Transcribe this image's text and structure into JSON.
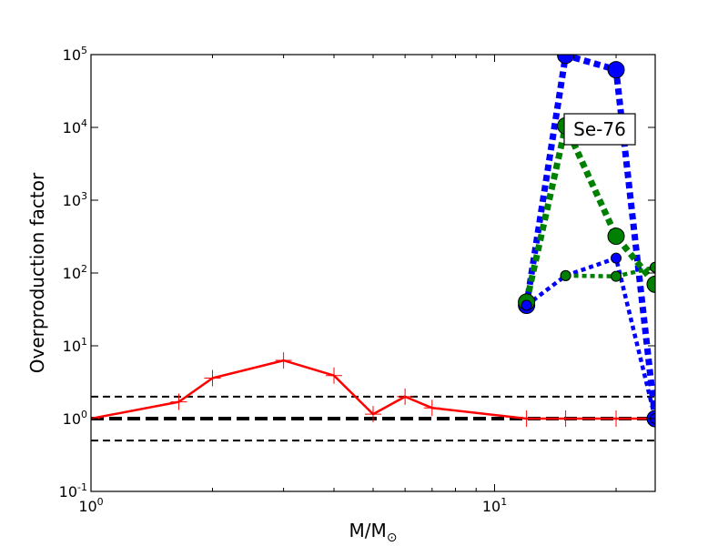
{
  "chart_data": {
    "type": "line",
    "xlabel_main": "M/M",
    "xlabel_sub": "⊙",
    "ylabel": "Overproduction factor",
    "annotation": "Se-76",
    "x_scale": "log",
    "y_scale": "log",
    "xlim": [
      1,
      25
    ],
    "ylim": [
      0.1,
      100000
    ],
    "x_ticks": [
      {
        "value": 1,
        "base": "10",
        "exp": "0"
      },
      {
        "value": 10,
        "base": "10",
        "exp": "1"
      }
    ],
    "y_ticks": [
      {
        "value": 0.1,
        "base": "10",
        "exp": "-1"
      },
      {
        "value": 1,
        "base": "10",
        "exp": "0"
      },
      {
        "value": 10,
        "base": "10",
        "exp": "1"
      },
      {
        "value": 100,
        "base": "10",
        "exp": "2"
      },
      {
        "value": 1000,
        "base": "10",
        "exp": "3"
      },
      {
        "value": 10000,
        "base": "10",
        "exp": "4"
      },
      {
        "value": 100000,
        "base": "10",
        "exp": "5"
      }
    ],
    "reference_lines": [
      {
        "y": 2,
        "color": "#000000",
        "style": "dashed",
        "width": 2
      },
      {
        "y": 1,
        "color": "#000000",
        "style": "dashed",
        "width": 4
      },
      {
        "y": 0.5,
        "color": "#000000",
        "style": "dashed",
        "width": 2
      }
    ],
    "series": [
      {
        "color": "#ff0000",
        "line": "solid",
        "width": 2.5,
        "marker": "plus",
        "marker_size": 9,
        "x": [
          1,
          1.65,
          2,
          3,
          4,
          5,
          6,
          7,
          12,
          15,
          20,
          25
        ],
        "y": [
          1.0,
          1.7,
          3.6,
          6.3,
          3.9,
          1.15,
          2.0,
          1.4,
          1.0,
          1.0,
          1.0,
          1.0
        ]
      },
      {
        "color": "#0000ff",
        "line": "dotted",
        "width": 7,
        "marker": "circle",
        "marker_size": 9,
        "x": [
          12,
          15,
          20,
          25
        ],
        "y": [
          36,
          98000,
          62000,
          1.0
        ]
      },
      {
        "color": "#008000",
        "line": "dotted",
        "width": 7,
        "marker": "circle",
        "marker_size": 9,
        "x": [
          12,
          15,
          20,
          25
        ],
        "y": [
          40,
          10500,
          320,
          70
        ]
      },
      {
        "color": "#0000ff",
        "line": "dotted",
        "width": 4.5,
        "marker": "circle",
        "marker_size": 5.5,
        "x": [
          12,
          15,
          20,
          25
        ],
        "y": [
          36,
          92,
          160,
          1.0
        ]
      },
      {
        "color": "#008000",
        "line": "dotted",
        "width": 4.5,
        "marker": "circle",
        "marker_size": 5.5,
        "x": [
          15,
          20,
          25
        ],
        "y": [
          92,
          90,
          120
        ]
      }
    ]
  }
}
